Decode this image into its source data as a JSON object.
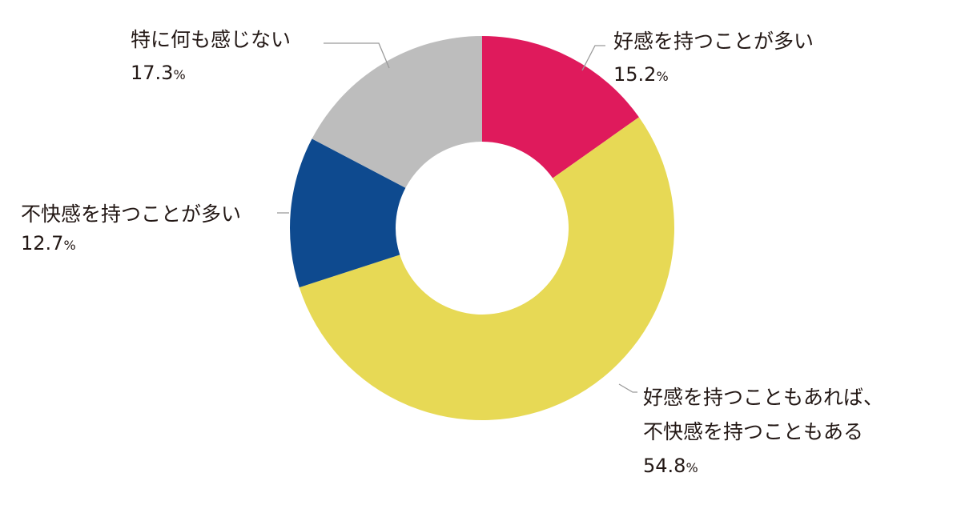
{
  "chart_data": {
    "type": "pie",
    "variant": "donut",
    "title": "",
    "unit": "%",
    "slices": [
      {
        "label_lines": [
          "好感を持つことが多い"
        ],
        "value": 15.2,
        "value_text": "15.2",
        "color": "#df1a5c"
      },
      {
        "label_lines": [
          "好感を持つこともあれば、",
          "不快感を持つこともある"
        ],
        "value": 54.8,
        "value_text": "54.8",
        "color": "#e7d955"
      },
      {
        "label_lines": [
          "不快感を持つことが多い"
        ],
        "value": 12.7,
        "value_text": "12.7",
        "color": "#0e4a8f"
      },
      {
        "label_lines": [
          "特に何も感じない"
        ],
        "value": 17.3,
        "value_text": "17.3",
        "color": "#bdbdbd"
      }
    ],
    "start_angle": "12 o'clock",
    "direction": "clockwise",
    "legend": "none (labels beside slices)"
  }
}
